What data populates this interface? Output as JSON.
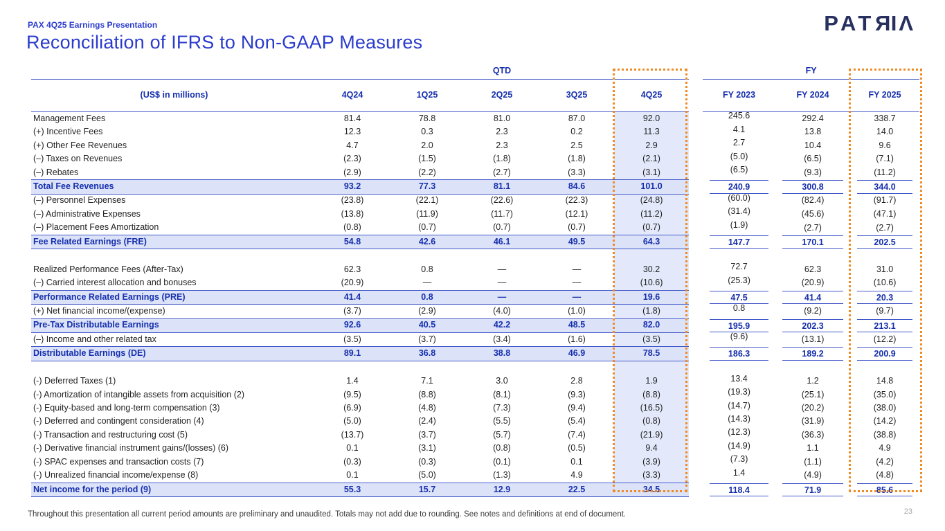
{
  "header": {
    "eyebrow": "PAX 4Q25 Earnings Presentation",
    "title": "Reconciliation of IFRS to Non-GAAP Measures"
  },
  "logo": {
    "text": "PATRIA",
    "letters": [
      {
        "ch": "P",
        "mirrored": false
      },
      {
        "ch": "A",
        "mirrored": false
      },
      {
        "ch": "T",
        "mirrored": false
      },
      {
        "ch": "R",
        "mirrored": true
      },
      {
        "ch": "I",
        "mirrored": false
      },
      {
        "ch": "Λ",
        "mirrored": false
      }
    ]
  },
  "table": {
    "units_label": "(US$ in millions)",
    "group_headers": {
      "qtd": "QTD",
      "fy": "FY"
    },
    "columns": [
      "4Q24",
      "1Q25",
      "2Q25",
      "3Q25",
      "4Q25",
      "FY 2023",
      "FY 2024",
      "FY 2025"
    ],
    "rows": [
      {
        "type": "data",
        "label": "Management Fees",
        "values": [
          "81.4",
          "78.8",
          "81.0",
          "87.0",
          "92.0",
          "245.6",
          "292.4",
          "338.7"
        ]
      },
      {
        "type": "data",
        "label": "(+) Incentive Fees",
        "values": [
          "12.3",
          "0.3",
          "2.3",
          "0.2",
          "11.3",
          "4.1",
          "13.8",
          "14.0"
        ]
      },
      {
        "type": "data",
        "label": "(+) Other Fee Revenues",
        "values": [
          "4.7",
          "2.0",
          "2.3",
          "2.5",
          "2.9",
          "2.7",
          "10.4",
          "9.6"
        ]
      },
      {
        "type": "data",
        "label": "(–) Taxes on Revenues",
        "values": [
          "(2.3)",
          "(1.5)",
          "(1.8)",
          "(1.8)",
          "(2.1)",
          "(5.0)",
          "(6.5)",
          "(7.1)"
        ]
      },
      {
        "type": "data",
        "label": "(–) Rebates",
        "values": [
          "(2.9)",
          "(2.2)",
          "(2.7)",
          "(3.3)",
          "(3.1)",
          "(6.5)",
          "(9.3)",
          "(11.2)"
        ]
      },
      {
        "type": "total",
        "label": "Total Fee Revenues",
        "values": [
          "93.2",
          "77.3",
          "81.1",
          "84.6",
          "101.0",
          "240.9",
          "300.8",
          "344.0"
        ]
      },
      {
        "type": "data",
        "label": "(–) Personnel Expenses",
        "values": [
          "(23.8)",
          "(22.1)",
          "(22.6)",
          "(22.3)",
          "(24.8)",
          "(60.0)",
          "(82.4)",
          "(91.7)"
        ]
      },
      {
        "type": "data",
        "label": "(–) Administrative Expenses",
        "values": [
          "(13.8)",
          "(11.9)",
          "(11.7)",
          "(12.1)",
          "(11.2)",
          "(31.4)",
          "(45.6)",
          "(47.1)"
        ]
      },
      {
        "type": "data",
        "label": "(–) Placement Fees Amortization",
        "values": [
          "(0.8)",
          "(0.7)",
          "(0.7)",
          "(0.7)",
          "(0.7)",
          "(1.9)",
          "(2.7)",
          "(2.7)"
        ]
      },
      {
        "type": "total",
        "label": "Fee Related Earnings (FRE)",
        "values": [
          "54.8",
          "42.6",
          "46.1",
          "49.5",
          "64.3",
          "147.7",
          "170.1",
          "202.5"
        ]
      },
      {
        "type": "gap"
      },
      {
        "type": "data",
        "label": "Realized Performance Fees (After-Tax)",
        "values": [
          "62.3",
          "0.8",
          "—",
          "—",
          "30.2",
          "72.7",
          "62.3",
          "31.0"
        ]
      },
      {
        "type": "data",
        "label": "(–) Carried interest allocation and bonuses",
        "values": [
          "(20.9)",
          "—",
          "—",
          "—",
          "(10.6)",
          "(25.3)",
          "(20.9)",
          "(10.6)"
        ]
      },
      {
        "type": "total",
        "label": "Performance Related Earnings (PRE)",
        "values": [
          "41.4",
          "0.8",
          "—",
          "—",
          "19.6",
          "47.5",
          "41.4",
          "20.3"
        ]
      },
      {
        "type": "data",
        "label": "(+) Net financial income/(expense)",
        "values": [
          "(3.7)",
          "(2.9)",
          "(4.0)",
          "(1.0)",
          "(1.8)",
          "0.8",
          "(9.2)",
          "(9.7)"
        ]
      },
      {
        "type": "total",
        "label": "Pre-Tax Distributable Earnings",
        "values": [
          "92.6",
          "40.5",
          "42.2",
          "48.5",
          "82.0",
          "195.9",
          "202.3",
          "213.1"
        ]
      },
      {
        "type": "data",
        "label": "(–) Income and other related tax",
        "values": [
          "(3.5)",
          "(3.7)",
          "(3.4)",
          "(1.6)",
          "(3.5)",
          "(9.6)",
          "(13.1)",
          "(12.2)"
        ]
      },
      {
        "type": "total",
        "label": "Distributable Earnings (DE)",
        "values": [
          "89.1",
          "36.8",
          "38.8",
          "46.9",
          "78.5",
          "186.3",
          "189.2",
          "200.9"
        ]
      },
      {
        "type": "gap"
      },
      {
        "type": "data",
        "label": "(-) Deferred Taxes (1)",
        "values": [
          "1.4",
          "7.1",
          "3.0",
          "2.8",
          "1.9",
          "13.4",
          "1.2",
          "14.8"
        ]
      },
      {
        "type": "data",
        "label": "(-) Amortization of intangible assets from acquisition (2)",
        "values": [
          "(9.5)",
          "(8.8)",
          "(8.1)",
          "(9.3)",
          "(8.8)",
          "(19.3)",
          "(25.1)",
          "(35.0)"
        ]
      },
      {
        "type": "data",
        "label": "(-) Equity-based and long-term compensation (3)",
        "values": [
          "(6.9)",
          "(4.8)",
          "(7.3)",
          "(9.4)",
          "(16.5)",
          "(14.7)",
          "(20.2)",
          "(38.0)"
        ]
      },
      {
        "type": "data",
        "label": "(-) Deferred and contingent consideration (4)",
        "values": [
          "(5.0)",
          "(2.4)",
          "(5.5)",
          "(5.4)",
          "(0.8)",
          "(14.3)",
          "(31.9)",
          "(14.2)"
        ]
      },
      {
        "type": "data",
        "label": "(-) Transaction and restructuring cost (5)",
        "values": [
          "(13.7)",
          "(3.7)",
          "(5.7)",
          "(7.4)",
          "(21.9)",
          "(12.3)",
          "(36.3)",
          "(38.8)"
        ]
      },
      {
        "type": "data",
        "label": "(-) Derivative financial instrument gains/(losses) (6)",
        "values": [
          "0.1",
          "(3.1)",
          "(0.8)",
          "(0.5)",
          "9.4",
          "(14.9)",
          "1.1",
          "4.9"
        ]
      },
      {
        "type": "data",
        "label": "(-) SPAC expenses and transaction costs (7)",
        "values": [
          "(0.3)",
          "(0.3)",
          "(0.1)",
          "0.1",
          "(3.9)",
          "(7.3)",
          "(1.1)",
          "(4.2)"
        ]
      },
      {
        "type": "data",
        "label": "(-) Unrealized financial income/expense (8)",
        "values": [
          "0.1",
          "(5.0)",
          "(1.3)",
          "4.9",
          "(3.3)",
          "1.4",
          "(4.9)",
          "(4.8)"
        ]
      },
      {
        "type": "total",
        "label": "Net income for the period (9)",
        "values": [
          "55.3",
          "15.7",
          "12.9",
          "22.5",
          "34.5",
          "118.4",
          "71.9",
          "85.6"
        ]
      }
    ]
  },
  "footer": {
    "disclaimer": "Throughout this presentation all current period amounts are preliminary and unaudited. Totals may not add due to rounding. See notes and definitions at end of document.",
    "page_number": "23"
  },
  "colors": {
    "accent": "#2b3ccd",
    "navy": "#162fae",
    "line": "#4459c9",
    "rowhl": "#dce3f8",
    "colhl": "#e3e9fb",
    "orange": "#ef8b25",
    "logo": "#27305f",
    "text": "#232323",
    "muted": "#a6a6a6"
  }
}
